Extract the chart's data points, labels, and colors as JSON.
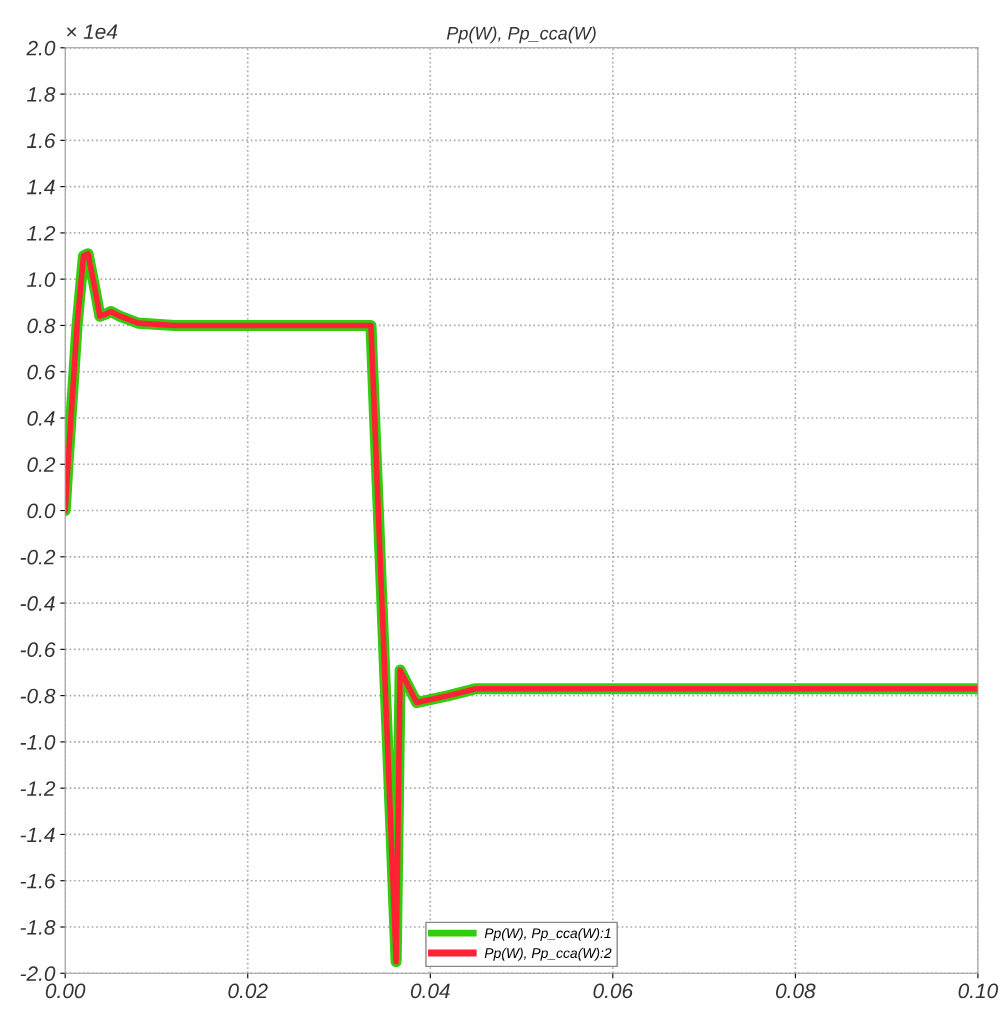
{
  "chart_data": {
    "type": "line",
    "title": "Pp(W), Pp_cca(W)",
    "annotations": [
      "× 1e4"
    ],
    "xlim": [
      0,
      0.1
    ],
    "xticks": [
      {
        "value": 0,
        "label": "0.00"
      },
      {
        "value": 0.02,
        "label": "0.02"
      },
      {
        "value": 0.04,
        "label": "0.04"
      },
      {
        "value": 0.06,
        "label": "0.06"
      },
      {
        "value": 0.08,
        "label": "0.08"
      },
      {
        "value": 0.1,
        "label": "0.10"
      }
    ],
    "ylim": [
      -2.0,
      2.0
    ],
    "yticks": [
      {
        "value": -2.0,
        "label": "-2.0"
      },
      {
        "value": -1.8,
        "label": "-1.8"
      },
      {
        "value": -1.6,
        "label": "-1.6"
      },
      {
        "value": -1.4,
        "label": "-1.4"
      },
      {
        "value": -1.2,
        "label": "-1.2"
      },
      {
        "value": -1.0,
        "label": "-1.0"
      },
      {
        "value": -0.8,
        "label": "-0.8"
      },
      {
        "value": -0.6,
        "label": "-0.6"
      },
      {
        "value": -0.4,
        "label": "-0.4"
      },
      {
        "value": -0.2,
        "label": "-0.2"
      },
      {
        "value": 0.0,
        "label": "0.0"
      },
      {
        "value": 0.2,
        "label": "0.2"
      },
      {
        "value": 0.4,
        "label": "0.4"
      },
      {
        "value": 0.6,
        "label": "0.6"
      },
      {
        "value": 0.8,
        "label": "0.8"
      },
      {
        "value": 1.0,
        "label": "1.0"
      },
      {
        "value": 1.2,
        "label": "1.2"
      },
      {
        "value": 1.4,
        "label": "1.4"
      },
      {
        "value": 1.6,
        "label": "1.6"
      },
      {
        "value": 1.8,
        "label": "1.8"
      },
      {
        "value": 2.0,
        "label": "2.0"
      }
    ],
    "grid": true,
    "legend": "bottom",
    "line_style": "solid",
    "series": [
      {
        "name": "Pp(W), Pp_cca(W):1",
        "color": "#33cc11",
        "x": [
          0,
          0.0003,
          0.0013,
          0.002,
          0.0025,
          0.0033,
          0.0038,
          0.0045,
          0.005,
          0.006,
          0.008,
          0.012,
          0.02,
          0.0333,
          0.0335,
          0.03626,
          0.0367,
          0.0385,
          0.042,
          0.045,
          0.06,
          0.08,
          0.1
        ],
        "values": [
          0,
          0.2,
          0.8,
          1.1,
          1.11,
          0.95,
          0.84,
          0.85,
          0.86,
          0.84,
          0.81,
          0.8,
          0.8,
          0.8,
          0.8,
          -1.95,
          -0.69,
          -0.83,
          -0.8,
          -0.77,
          -0.77,
          -0.77,
          -0.77
        ]
      },
      {
        "name": "Pp(W), Pp_cca(W):2",
        "color": "#ff2233",
        "x": [
          0,
          0.0003,
          0.0013,
          0.002,
          0.0025,
          0.0033,
          0.0038,
          0.0045,
          0.005,
          0.006,
          0.008,
          0.012,
          0.02,
          0.0333,
          0.0335,
          0.03626,
          0.0367,
          0.0385,
          0.042,
          0.045,
          0.06,
          0.08,
          0.1
        ],
        "values": [
          0,
          0.2,
          0.8,
          1.1,
          1.11,
          0.95,
          0.84,
          0.85,
          0.86,
          0.84,
          0.81,
          0.8,
          0.8,
          0.8,
          0.8,
          -1.95,
          -0.69,
          -0.83,
          -0.8,
          -0.77,
          -0.77,
          -0.77,
          -0.77
        ]
      }
    ]
  }
}
